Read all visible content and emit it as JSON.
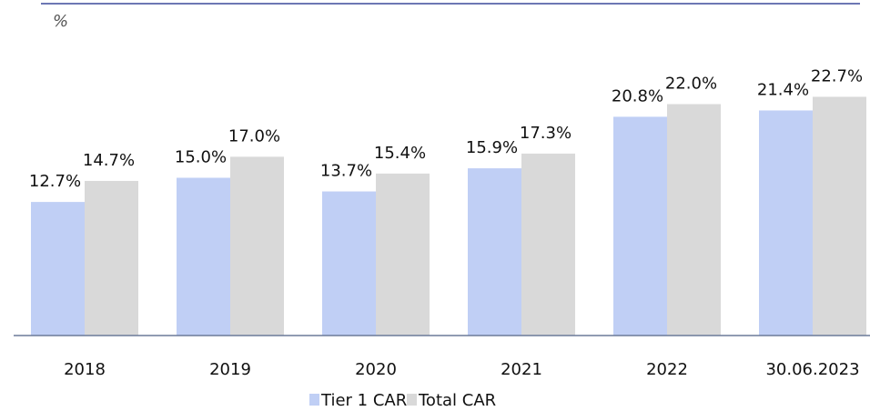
{
  "chart_data": {
    "type": "bar",
    "y_label": "%",
    "categories": [
      "2018",
      "2019",
      "2020",
      "2021",
      "2022",
      "30.06.2023"
    ],
    "series": [
      {
        "name": "Tier 1 CAR",
        "color": "#c0cff5",
        "values": [
          12.7,
          15.0,
          13.7,
          15.9,
          20.8,
          21.4
        ],
        "value_labels": [
          "12.7%",
          "15.0%",
          "13.7%",
          "15.9%",
          "20.8%",
          "21.4%"
        ]
      },
      {
        "name": "Total CAR",
        "color": "#d9d9d9",
        "values": [
          14.7,
          17.0,
          15.4,
          17.3,
          22.0,
          22.7
        ],
        "value_labels": [
          "14.7%",
          "17.0%",
          "15.4%",
          "17.3%",
          "22.0%",
          "22.7%"
        ]
      }
    ],
    "ylim": [
      0,
      30
    ],
    "legend": "bottom"
  }
}
